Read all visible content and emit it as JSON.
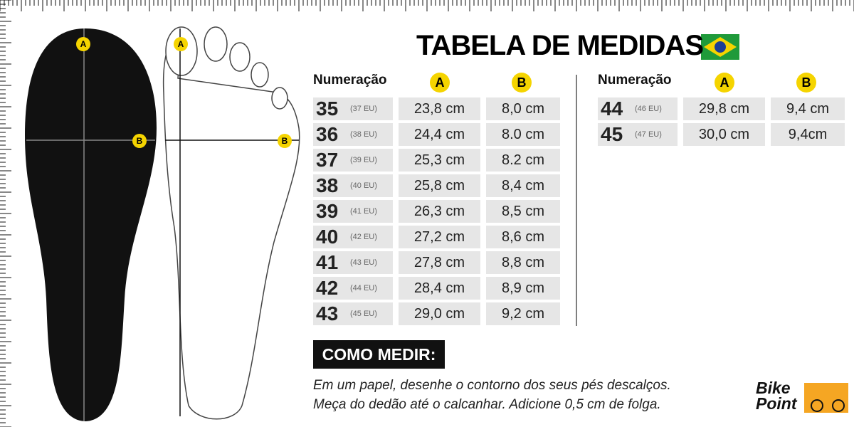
{
  "title": "TABELA DE MEDIDAS",
  "diagram": {
    "insole_labels": [
      "A",
      "B"
    ],
    "foot_labels": [
      "A",
      "B"
    ]
  },
  "tables": [
    {
      "headers": [
        "Numeração",
        "A",
        "B"
      ],
      "rows": [
        [
          "35",
          "(37 EU)",
          "23,8 cm",
          "8,0 cm"
        ],
        [
          "36",
          "(38 EU)",
          "24,4 cm",
          "8.0 cm"
        ],
        [
          "37",
          "(39 EU)",
          "25,3 cm",
          "8.2 cm"
        ],
        [
          "38",
          "(40 EU)",
          "25,8 cm",
          "8,4 cm"
        ],
        [
          "39",
          "(41 EU)",
          "26,3 cm",
          "8,5 cm"
        ],
        [
          "40",
          "(42 EU)",
          "27,2 cm",
          "8,6 cm"
        ],
        [
          "41",
          "(43 EU)",
          "27,8 cm",
          "8,8 cm"
        ],
        [
          "42",
          "(44 EU)",
          "28,4 cm",
          "8,9 cm"
        ],
        [
          "43",
          "(45 EU)",
          "29,0 cm",
          "9,2 cm"
        ]
      ]
    },
    {
      "headers": [
        "Numeração",
        "A",
        "B"
      ],
      "rows": [
        [
          "44",
          "(46 EU)",
          "29,8 cm",
          "9,4 cm"
        ],
        [
          "45",
          "(47 EU)",
          "30,0 cm",
          "9,4cm"
        ]
      ]
    }
  ],
  "how_to": {
    "title": "COMO MEDIR:",
    "lines": [
      "Em um papel,  desenhe o contorno dos seus pés descalços.",
      "Meça do dedão até o calcanhar. Adicione 0,5 cm de folga."
    ]
  },
  "logo": {
    "line1": "Bike",
    "line2": "Point"
  }
}
